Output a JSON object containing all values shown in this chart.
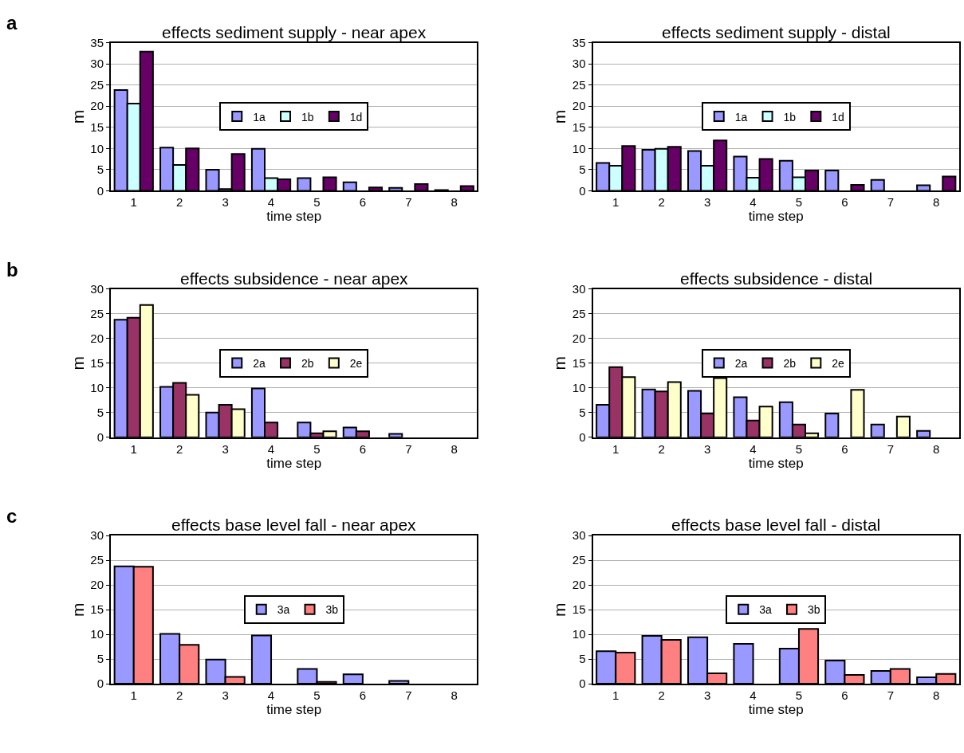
{
  "chart_data": [
    {
      "type": "bar",
      "title": "effects sediment supply - near apex",
      "annotations": [
        "a"
      ],
      "xlabel": "time step",
      "ylabel": "m",
      "categories": [
        "1",
        "2",
        "3",
        "4",
        "5",
        "6",
        "7",
        "8"
      ],
      "ylim": [
        0,
        35
      ],
      "yticks": [
        0,
        5,
        10,
        15,
        20,
        25,
        30,
        35
      ],
      "grid": "y",
      "legend": "center",
      "series": [
        {
          "name": "1a",
          "color": "#9999ff",
          "values": [
            23.8,
            10.2,
            5,
            9.9,
            3,
            2,
            0.7,
            0.2
          ]
        },
        {
          "name": "1b",
          "color": "#ccffff",
          "values": [
            20.6,
            6.1,
            0.4,
            3,
            null,
            null,
            null,
            null
          ]
        },
        {
          "name": "1d",
          "color": "#660066",
          "values": [
            32.9,
            10,
            8.7,
            2.7,
            3.2,
            0.8,
            1.6,
            1.1
          ]
        }
      ]
    },
    {
      "type": "bar",
      "title": "effects sediment supply - distal",
      "xlabel": "time step",
      "ylabel": "m",
      "categories": [
        "1",
        "2",
        "3",
        "4",
        "5",
        "6",
        "7",
        "8"
      ],
      "ylim": [
        0,
        35
      ],
      "yticks": [
        0,
        5,
        10,
        15,
        20,
        25,
        30,
        35
      ],
      "grid": "y",
      "legend": "center",
      "series": [
        {
          "name": "1a",
          "color": "#9999ff",
          "values": [
            6.6,
            9.7,
            9.4,
            8.1,
            7.1,
            4.8,
            2.6,
            1.3
          ]
        },
        {
          "name": "1b",
          "color": "#ccffff",
          "values": [
            5.9,
            9.9,
            5.9,
            3.1,
            3.2,
            null,
            null,
            null
          ]
        },
        {
          "name": "1d",
          "color": "#660066",
          "values": [
            10.6,
            10.4,
            11.9,
            7.5,
            4.8,
            1.4,
            null,
            3.4
          ]
        }
      ]
    },
    {
      "type": "bar",
      "title": "effects subsidence - near apex",
      "annotations": [
        "b"
      ],
      "xlabel": "time step",
      "ylabel": "m",
      "categories": [
        "1",
        "2",
        "3",
        "4",
        "5",
        "6",
        "7",
        "8"
      ],
      "ylim": [
        0,
        30
      ],
      "yticks": [
        0,
        5,
        10,
        15,
        20,
        25,
        30
      ],
      "grid": "y",
      "legend": "center",
      "series": [
        {
          "name": "2a",
          "color": "#9999ff",
          "values": [
            23.8,
            10.2,
            5,
            9.9,
            3,
            2,
            0.7,
            null
          ]
        },
        {
          "name": "2b",
          "color": "#993366",
          "values": [
            24.2,
            11,
            6.6,
            3,
            0.8,
            1.2,
            null,
            null
          ]
        },
        {
          "name": "2e",
          "color": "#ffffcc",
          "values": [
            26.8,
            8.6,
            5.7,
            null,
            1.2,
            null,
            null,
            null
          ]
        }
      ]
    },
    {
      "type": "bar",
      "title": "effects subsidence - distal",
      "xlabel": "time step",
      "ylabel": "m",
      "categories": [
        "1",
        "2",
        "3",
        "4",
        "5",
        "6",
        "7",
        "8"
      ],
      "ylim": [
        0,
        30
      ],
      "yticks": [
        0,
        5,
        10,
        15,
        20,
        25,
        30
      ],
      "grid": "y",
      "legend": "center",
      "series": [
        {
          "name": "2a",
          "color": "#9999ff",
          "values": [
            6.6,
            9.7,
            9.4,
            8.1,
            7.1,
            4.8,
            2.6,
            1.3
          ]
        },
        {
          "name": "2b",
          "color": "#993366",
          "values": [
            14.2,
            9.3,
            4.8,
            3.4,
            2.6,
            null,
            null,
            null
          ]
        },
        {
          "name": "2e",
          "color": "#ffffcc",
          "values": [
            12.2,
            11.2,
            12,
            6.2,
            0.8,
            9.6,
            4.2,
            null
          ]
        }
      ]
    },
    {
      "type": "bar",
      "title": "effects base level fall - near apex",
      "annotations": [
        "c"
      ],
      "xlabel": "time step",
      "ylabel": "m",
      "categories": [
        "1",
        "2",
        "3",
        "4",
        "5",
        "6",
        "7",
        "8"
      ],
      "ylim": [
        0,
        30
      ],
      "yticks": [
        0,
        5,
        10,
        15,
        20,
        25,
        30
      ],
      "grid": "y",
      "legend": "center",
      "series": [
        {
          "name": "3a",
          "color": "#9999ff",
          "values": [
            23.8,
            10.1,
            4.9,
            9.8,
            3,
            1.9,
            0.6,
            null
          ]
        },
        {
          "name": "3b",
          "color": "#ff8080",
          "values": [
            23.7,
            7.9,
            1.4,
            null,
            0.4,
            null,
            null,
            null
          ]
        }
      ]
    },
    {
      "type": "bar",
      "title": "effects base level fall - distal",
      "xlabel": "time step",
      "ylabel": "m",
      "categories": [
        "1",
        "2",
        "3",
        "4",
        "5",
        "6",
        "7",
        "8"
      ],
      "ylim": [
        0,
        30
      ],
      "yticks": [
        0,
        5,
        10,
        15,
        20,
        25,
        30
      ],
      "grid": "y",
      "legend": "center",
      "series": [
        {
          "name": "3a",
          "color": "#9999ff",
          "values": [
            6.6,
            9.7,
            9.4,
            8.1,
            7.1,
            4.7,
            2.6,
            1.3
          ]
        },
        {
          "name": "3b",
          "color": "#ff8080",
          "values": [
            6.3,
            8.9,
            2.1,
            null,
            11.1,
            1.8,
            3,
            2
          ]
        }
      ]
    }
  ]
}
